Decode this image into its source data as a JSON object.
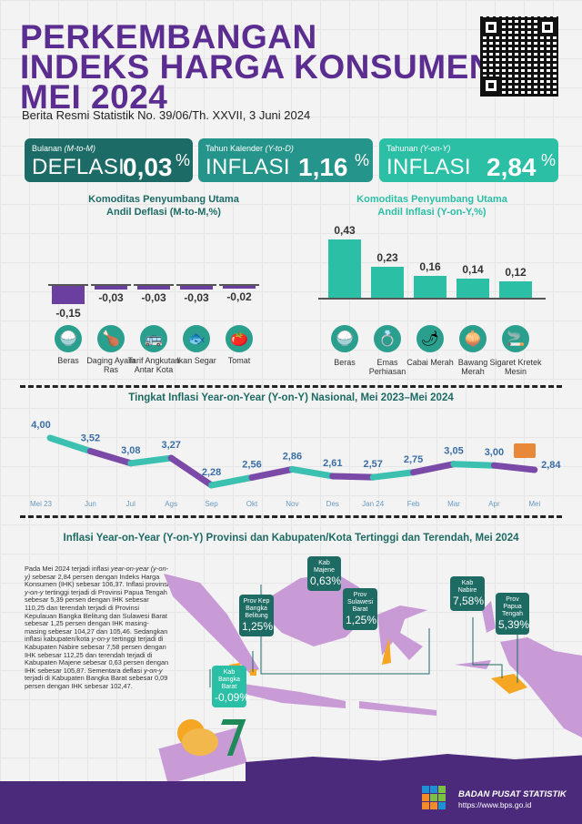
{
  "header": {
    "title_lines": [
      "PERKEMBANGAN",
      "INDEKS HARGA KONSUMEN",
      "MEI 2024"
    ],
    "subtitle": "Berita Resmi Statistik No. 39/06/Th. XXVII, 3 Juni 2024"
  },
  "summary": [
    {
      "period": "Bulanan",
      "period_code": "(M-to-M)",
      "kind": "DEFLASI",
      "value": "0,03",
      "unit": "%",
      "color": "#1d6b66"
    },
    {
      "period": "Tahun Kalender",
      "period_code": "(Y-to-D)",
      "kind": "INFLASI",
      "value": "1,16",
      "unit": "%",
      "color": "#25948a"
    },
    {
      "period": "Tahunan",
      "period_code": "(Y-on-Y)",
      "kind": "INFLASI",
      "value": "2,84",
      "unit": "%",
      "color": "#2bbfa6"
    }
  ],
  "chart_data": [
    {
      "type": "bar",
      "title_line1": "Komoditas Penyumbang Utama",
      "title_line2": "Andil Deflasi (M-to-M,%)",
      "categories": [
        "Beras",
        "Daging Ayam Ras",
        "Tarif Angkutan Antar Kota",
        "Ikan Segar",
        "Tomat"
      ],
      "values": [
        -0.15,
        -0.03,
        -0.03,
        -0.03,
        -0.02
      ],
      "labels": [
        "-0,15",
        "-0,03",
        "-0,03",
        "-0,03",
        "-0,02"
      ],
      "icons": [
        "rice-bowl-icon",
        "roast-chicken-icon",
        "bus-icon",
        "fish-icon",
        "tomato-icon"
      ],
      "color": "#6b3fa0"
    },
    {
      "type": "bar",
      "title_line1": "Komoditas Penyumbang Utama",
      "title_line2": "Andil Inflasi (Y-on-Y,%)",
      "categories": [
        "Beras",
        "Emas Perhiasan",
        "Cabai Merah",
        "Bawang Merah",
        "Sigaret Kretek Mesin"
      ],
      "values": [
        0.43,
        0.23,
        0.16,
        0.14,
        0.12
      ],
      "labels": [
        "0,43",
        "0,23",
        "0,16",
        "0,14",
        "0,12"
      ],
      "icons": [
        "rice-bowl-icon",
        "gold-jewelry-icon",
        "chili-icon",
        "onion-icon",
        "cigarette-icon"
      ],
      "color": "#2bbfa6"
    },
    {
      "type": "line",
      "title": "Tingkat Inflasi Year-on-Year (Y-on-Y) Nasional, Mei 2023–Mei 2024",
      "categories": [
        "Mei 23",
        "Jun",
        "Jul",
        "Ags",
        "Sep",
        "Okt",
        "Nov",
        "Des",
        "Jan 24",
        "Feb",
        "Mar",
        "Apr",
        "Mei"
      ],
      "values": [
        4.0,
        3.52,
        3.08,
        3.27,
        2.28,
        2.56,
        2.86,
        2.61,
        2.57,
        2.75,
        3.05,
        3.0,
        2.84
      ],
      "labels": [
        "4,00",
        "3,52",
        "3,08",
        "3,27",
        "2,28",
        "2,56",
        "2,86",
        "2,61",
        "2,57",
        "2,75",
        "3,05",
        "3,00",
        "2,84"
      ],
      "colors": [
        "#3cc0b0",
        "#7b4aa8"
      ]
    }
  ],
  "map": {
    "title": "Inflasi Year-on-Year (Y-on-Y) Provinsi dan Kabupaten/Kota Tertinggi dan Terendah, Mei 2024",
    "paragraph": "Pada Mei 2024 terjadi inflasi year-on-year (y-on-y) sebesar 2,84 persen dengan Indeks Harga Konsumen (IHK) sebesar 106,37. Inflasi provinsi y-on-y tertinggi terjadi di Provinsi Papua Tengah sebesar 5,39 persen dengan IHK sebesar 110,25 dan terendah terjadi di Provinsi Kepulauan Bangka Belitung dan Sulawesi Barat sebesar 1,25 persen dengan IHK masing-masing sebesar 104,27 dan 105,46. Sedangkan inflasi kabupaten/kota y-on-y tertinggi terjadi di Kabupaten Nabire sebesar 7,58 persen dengan IHK sebesar 112,25 dan terendah terjadi di Kabupaten Majene sebesar 0,63 persen dengan IHK sebesar 105,87. Sementara deflasi y-on-y terjadi di Kabupaten Bangka Barat sebesar 0,09 persen dengan IHK sebesar 102,47.",
    "tags": [
      {
        "name": "Kab Majene",
        "value": "0,63%"
      },
      {
        "name": "Prov Kep Bangka Belitung",
        "value": "1,25%"
      },
      {
        "name": "Prov Sulawesi Barat",
        "value": "1,25%"
      },
      {
        "name": "Kab Nabire",
        "value": "7,58%"
      },
      {
        "name": "Prov Papua Tengah",
        "value": "5,39%"
      },
      {
        "name": "Kab Bangka Barat",
        "value": "-0,09%"
      }
    ],
    "colors": {
      "land": "#c89ad6",
      "highlight": "#f5a623"
    }
  },
  "footer": {
    "org": "BADAN PUSAT STATISTIK",
    "url": "https://www.bps.go.id"
  }
}
